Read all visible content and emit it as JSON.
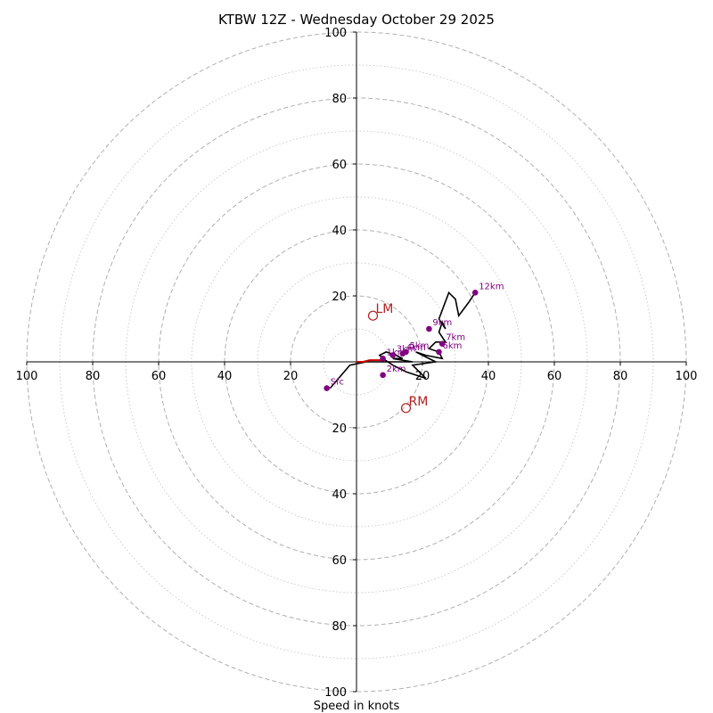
{
  "chart_data": {
    "type": "hodograph",
    "title": "KTBW 12Z - Wednesday October 29 2025",
    "xlabel": "Speed in knots",
    "rmax": 100,
    "ring_dashed": [
      20,
      40,
      60,
      80,
      100
    ],
    "ring_dotted": [
      10,
      30,
      50,
      70,
      90
    ],
    "tick_labels": [
      "100",
      "80",
      "60",
      "40",
      "20",
      "20",
      "40",
      "60",
      "80",
      "100"
    ],
    "tick_values": [
      -100,
      -80,
      -60,
      -40,
      -20,
      20,
      40,
      60,
      80,
      100
    ],
    "colors": {
      "grid": "#b0b0b0",
      "trace": "#000000",
      "lowlevel": "#cc0000",
      "marker": "#800080",
      "motion": "#b22222"
    },
    "trace_u": [
      -8,
      -2,
      3,
      7,
      10,
      13,
      17,
      11,
      14,
      12,
      9,
      7,
      8,
      11,
      15,
      21,
      17,
      24,
      18,
      21,
      26,
      25,
      22,
      24,
      27,
      25,
      26,
      27,
      25,
      28,
      30,
      31,
      34,
      36
    ],
    "trace_v": [
      -8,
      -1,
      0,
      0,
      0,
      0,
      0,
      1,
      1,
      2,
      3,
      2,
      1,
      -1,
      -3,
      -5,
      -1,
      0,
      3,
      2,
      1,
      3,
      4,
      6,
      6,
      9,
      12,
      10,
      13,
      21,
      19,
      14,
      18,
      21
    ],
    "lowlevel_u": [
      0,
      2,
      4,
      6,
      7,
      8
    ],
    "lowlevel_v": [
      0,
      0,
      0.5,
      0.5,
      0.5,
      0.5
    ],
    "height_markers": [
      {
        "label": "Sfc",
        "u": -9,
        "v": -8
      },
      {
        "label": "1km",
        "u": 8,
        "v": 1
      },
      {
        "label": "2km",
        "u": 8,
        "v": -4
      },
      {
        "label": "3km",
        "u": 11,
        "v": 2
      },
      {
        "label": "4km",
        "u": 14,
        "v": 2.5
      },
      {
        "label": "5km",
        "u": 15,
        "v": 3
      },
      {
        "label": "6km",
        "u": 25,
        "v": 3
      },
      {
        "label": "7km",
        "u": 26,
        "v": 5.5
      },
      {
        "label": "9km",
        "u": 22,
        "v": 10
      },
      {
        "label": "12km",
        "u": 36,
        "v": 21
      }
    ],
    "storm_motion": [
      {
        "label": "LM",
        "u": 5,
        "v": 14
      },
      {
        "label": "RM",
        "u": 15,
        "v": -14
      }
    ]
  }
}
